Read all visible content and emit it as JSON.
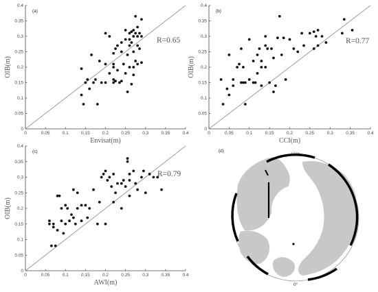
{
  "chart_data": [
    {
      "type": "scatter",
      "panel": "(a)",
      "xlabel": "Envisat(m)",
      "ylabel": "OIB(m)",
      "annotation": "R=0.65",
      "xlim": [
        0,
        0.4
      ],
      "ylim": [
        0,
        0.4
      ],
      "xticks": [
        "0",
        "0.05",
        "0.1",
        "0.15",
        "0.2",
        "0.25",
        "0.3",
        "0.35",
        "0.4"
      ],
      "yticks": [
        "0",
        "0.05",
        "0.1",
        "0.15",
        "0.2",
        "0.25",
        "0.3",
        "0.35",
        "0.4"
      ],
      "reference_line": "1:1",
      "x": [
        0.14,
        0.14,
        0.145,
        0.15,
        0.155,
        0.16,
        0.165,
        0.17,
        0.175,
        0.18,
        0.185,
        0.19,
        0.2,
        0.2,
        0.21,
        0.22,
        0.22,
        0.22,
        0.22,
        0.225,
        0.225,
        0.23,
        0.235,
        0.24,
        0.24,
        0.245,
        0.25,
        0.25,
        0.255,
        0.255,
        0.26,
        0.26,
        0.26,
        0.265,
        0.265,
        0.265,
        0.27,
        0.27,
        0.27,
        0.27,
        0.275,
        0.275,
        0.275,
        0.28,
        0.28,
        0.28,
        0.285,
        0.285,
        0.29,
        0.29,
        0.29,
        0.26,
        0.24,
        0.23,
        0.22,
        0.28,
        0.27,
        0.25,
        0.21,
        0.2
      ],
      "y": [
        0.195,
        0.11,
        0.08,
        0.15,
        0.16,
        0.13,
        0.24,
        0.15,
        0.16,
        0.08,
        0.22,
        0.15,
        0.31,
        0.15,
        0.3,
        0.15,
        0.16,
        0.2,
        0.245,
        0.26,
        0.155,
        0.27,
        0.15,
        0.25,
        0.155,
        0.21,
        0.32,
        0.18,
        0.24,
        0.12,
        0.31,
        0.29,
        0.2,
        0.315,
        0.28,
        0.145,
        0.32,
        0.3,
        0.25,
        0.175,
        0.365,
        0.31,
        0.22,
        0.3,
        0.27,
        0.21,
        0.31,
        0.26,
        0.355,
        0.3,
        0.215,
        0.27,
        0.28,
        0.19,
        0.21,
        0.33,
        0.2,
        0.29,
        0.18,
        0.21
      ]
    },
    {
      "type": "scatter",
      "panel": "(b)",
      "xlabel": "CCI(m)",
      "ylabel": "OIB(m)",
      "annotation": "R=0.77",
      "xlim": [
        0,
        0.4
      ],
      "ylim": [
        0,
        0.4
      ],
      "xticks": [
        "0",
        "0.05",
        "0.1",
        "0.15",
        "0.2",
        "0.25",
        "0.3",
        "0.35",
        "0.4"
      ],
      "yticks": [
        "0",
        "0.05",
        "0.1",
        "0.15",
        "0.2",
        "0.25",
        "0.3",
        "0.35",
        "0.4"
      ],
      "reference_line": "1:1",
      "x": [
        0.03,
        0.035,
        0.045,
        0.05,
        0.05,
        0.06,
        0.07,
        0.075,
        0.08,
        0.08,
        0.085,
        0.085,
        0.09,
        0.1,
        0.1,
        0.11,
        0.115,
        0.12,
        0.12,
        0.125,
        0.13,
        0.13,
        0.14,
        0.14,
        0.145,
        0.15,
        0.155,
        0.16,
        0.16,
        0.165,
        0.17,
        0.175,
        0.18,
        0.185,
        0.19,
        0.2,
        0.21,
        0.22,
        0.23,
        0.235,
        0.25,
        0.26,
        0.26,
        0.265,
        0.27,
        0.27,
        0.28,
        0.29,
        0.33,
        0.335,
        0.355,
        0.11,
        0.09,
        0.13,
        0.06,
        0.14
      ],
      "y": [
        0.16,
        0.08,
        0.13,
        0.11,
        0.24,
        0.16,
        0.2,
        0.21,
        0.15,
        0.26,
        0.15,
        0.2,
        0.15,
        0.29,
        0.16,
        0.22,
        0.15,
        0.24,
        0.18,
        0.26,
        0.2,
        0.22,
        0.3,
        0.2,
        0.26,
        0.15,
        0.26,
        0.12,
        0.23,
        0.14,
        0.295,
        0.365,
        0.24,
        0.295,
        0.16,
        0.29,
        0.26,
        0.25,
        0.31,
        0.27,
        0.31,
        0.315,
        0.26,
        0.3,
        0.32,
        0.27,
        0.3,
        0.28,
        0.31,
        0.355,
        0.32,
        0.15,
        0.08,
        0.14,
        0.14,
        0.27
      ]
    },
    {
      "type": "scatter",
      "panel": "(c)",
      "xlabel": "AWI(m)",
      "ylabel": "OIB(m)",
      "annotation": "R=0.79",
      "xlim": [
        0,
        0.4
      ],
      "ylim": [
        0,
        0.4
      ],
      "xticks": [
        "0",
        "0.05",
        "0.1",
        "0.15",
        "0.2",
        "0.25",
        "0.3",
        "0.35",
        "0.4"
      ],
      "yticks": [
        "0",
        "0.05",
        "0.1",
        "0.15",
        "0.2",
        "0.25",
        "0.3",
        "0.35",
        "0.4"
      ],
      "reference_line": "1:1",
      "x": [
        0.06,
        0.06,
        0.065,
        0.07,
        0.07,
        0.075,
        0.08,
        0.08,
        0.085,
        0.09,
        0.09,
        0.095,
        0.1,
        0.1,
        0.105,
        0.11,
        0.115,
        0.12,
        0.12,
        0.125,
        0.13,
        0.13,
        0.14,
        0.14,
        0.15,
        0.155,
        0.16,
        0.17,
        0.18,
        0.185,
        0.19,
        0.195,
        0.2,
        0.205,
        0.21,
        0.215,
        0.22,
        0.225,
        0.23,
        0.24,
        0.245,
        0.25,
        0.255,
        0.255,
        0.26,
        0.26,
        0.27,
        0.275,
        0.28,
        0.29,
        0.295,
        0.3,
        0.31,
        0.32,
        0.33,
        0.34,
        0.26,
        0.24,
        0.22,
        0.2
      ],
      "y": [
        0.16,
        0.15,
        0.08,
        0.15,
        0.14,
        0.08,
        0.24,
        0.13,
        0.24,
        0.2,
        0.16,
        0.12,
        0.21,
        0.15,
        0.2,
        0.16,
        0.18,
        0.17,
        0.26,
        0.15,
        0.2,
        0.25,
        0.21,
        0.16,
        0.21,
        0.17,
        0.2,
        0.26,
        0.15,
        0.22,
        0.3,
        0.31,
        0.32,
        0.29,
        0.3,
        0.27,
        0.31,
        0.25,
        0.28,
        0.2,
        0.29,
        0.27,
        0.35,
        0.36,
        0.31,
        0.24,
        0.32,
        0.28,
        0.26,
        0.3,
        0.32,
        0.25,
        0.31,
        0.3,
        0.3,
        0.26,
        0.29,
        0.28,
        0.22,
        0.15
      ]
    }
  ],
  "map_panel": {
    "panel": "(d)",
    "labels": {
      "top": "180°",
      "bottom": "0°"
    },
    "colors": {
      "land": "#c8c8c8",
      "ocean": "#ffffff",
      "track": "#000000"
    }
  }
}
